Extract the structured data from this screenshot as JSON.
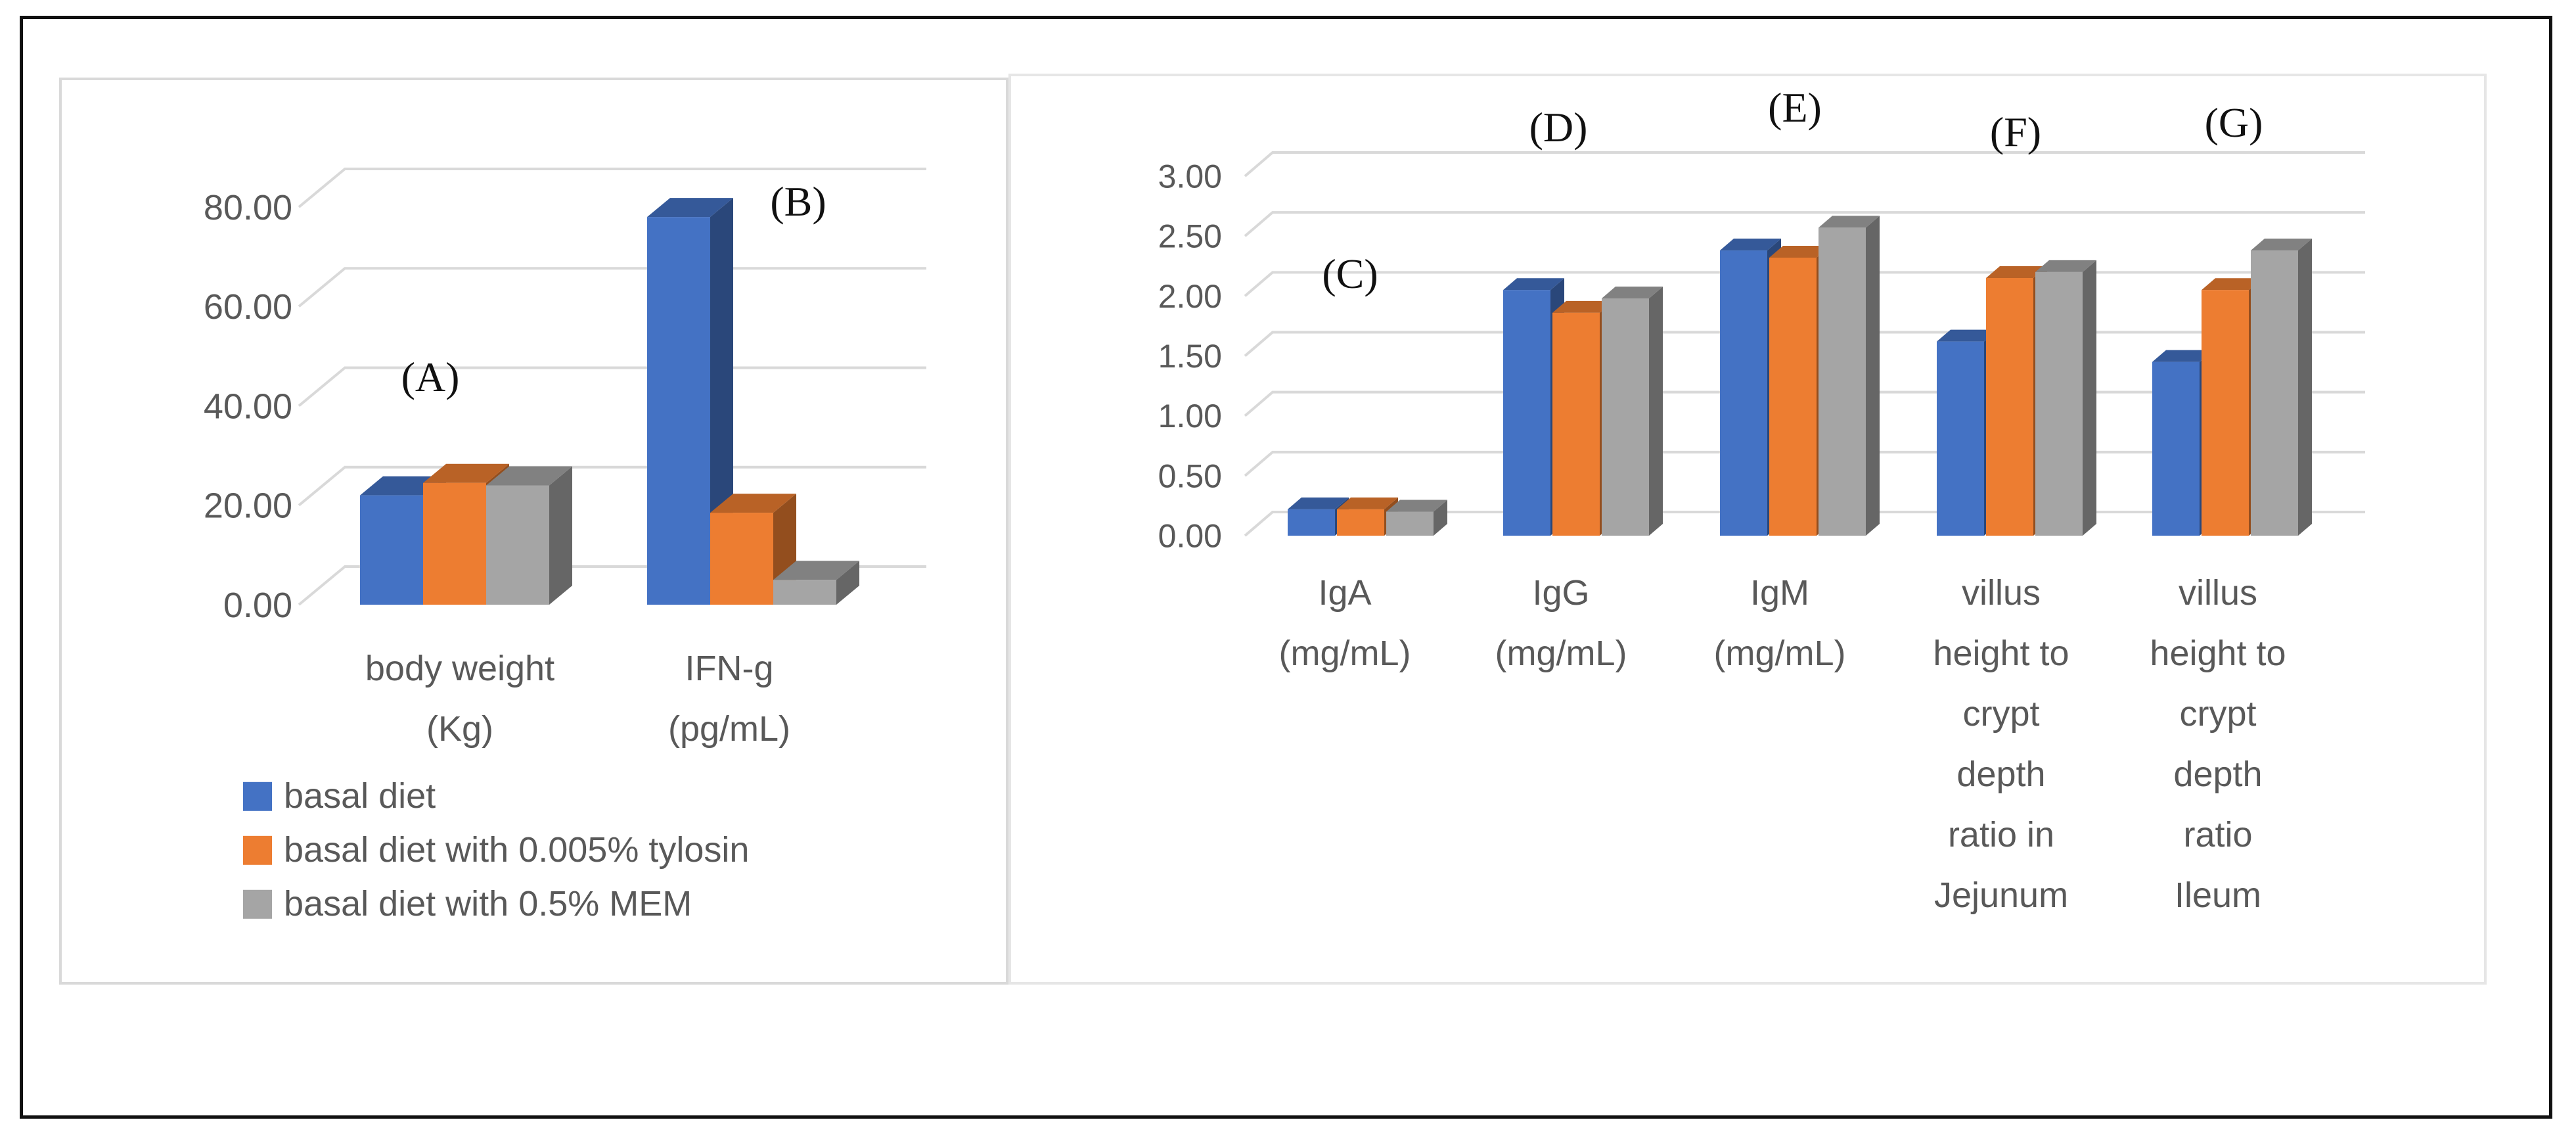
{
  "chart_data": [
    {
      "type": "bar",
      "subtype": "3d-clustered-column",
      "panel_labels": [
        "(A)",
        "(B)"
      ],
      "categories": [
        [
          "body weight",
          "(Kg)"
        ],
        [
          "IFN-g",
          "(pg/mL)"
        ]
      ],
      "series": [
        {
          "name": "basal diet",
          "color": "#4472c4",
          "values": [
            22,
            78
          ]
        },
        {
          "name": "basal diet with 0.005% tylosin",
          "color": "#ed7d31",
          "values": [
            24.5,
            18.5
          ]
        },
        {
          "name": "basal diet with 0.5% MEM",
          "color": "#a5a5a5",
          "values": [
            24,
            5
          ]
        }
      ],
      "yticks": [
        "0.00",
        "20.00",
        "40.00",
        "60.00",
        "80.00"
      ],
      "ylim": [
        0,
        80
      ],
      "legend_position": "bottom-left"
    },
    {
      "type": "bar",
      "subtype": "3d-clustered-column",
      "panel_labels": [
        "(C)",
        "(D)",
        "(E)",
        "(F)",
        "(G)"
      ],
      "categories": [
        [
          "IgA",
          "(mg/mL)"
        ],
        [
          "IgG",
          "(mg/mL)"
        ],
        [
          "IgM",
          "(mg/mL)"
        ],
        [
          "villus",
          "height to",
          "crypt",
          "depth",
          "ratio in",
          "Jejunum"
        ],
        [
          "villus",
          "height to",
          "crypt",
          "depth",
          "ratio",
          "Ileum"
        ]
      ],
      "series": [
        {
          "name": "basal diet",
          "color": "#4472c4",
          "values": [
            0.22,
            2.05,
            2.38,
            1.62,
            1.45
          ]
        },
        {
          "name": "basal diet with 0.005% tylosin",
          "color": "#ed7d31",
          "values": [
            0.22,
            1.86,
            2.32,
            2.15,
            2.05
          ]
        },
        {
          "name": "basal diet with 0.5% MEM",
          "color": "#a5a5a5",
          "values": [
            0.2,
            1.98,
            2.57,
            2.2,
            2.38
          ]
        }
      ],
      "yticks": [
        "0.00",
        "0.50",
        "1.00",
        "1.50",
        "2.00",
        "2.50",
        "3.00"
      ],
      "ylim": [
        0,
        3
      ],
      "legend_position": "none"
    }
  ]
}
